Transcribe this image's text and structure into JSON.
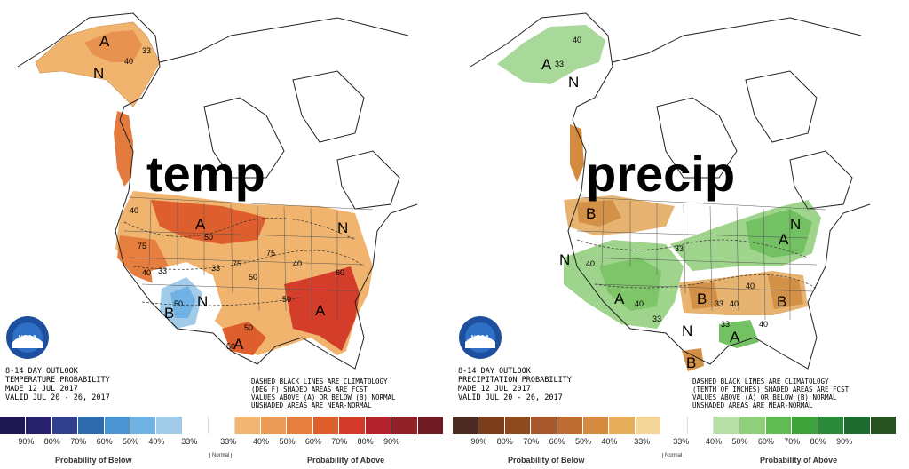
{
  "temp_panel": {
    "big_label": "temp",
    "logo_text": "NOAA",
    "outlook_lines": [
      "8-14 DAY OUTLOOK",
      "TEMPERATURE PROBABILITY",
      "MADE   12 JUL 2017",
      "VALID   JUL 20 - 26, 2017"
    ],
    "note_lines": [
      "DASHED BLACK LINES ARE CLIMATOLOGY",
      "(DEG F) SHADED AREAS ARE FCST",
      "VALUES ABOVE (A) OR BELOW (B) NORMAL",
      "UNSHADED AREAS ARE NEAR-NORMAL"
    ],
    "markers": [
      "A",
      "N",
      "A",
      "B",
      "N",
      "A",
      "A",
      "N"
    ],
    "contour_labels": [
      "40",
      "33",
      "50",
      "75",
      "75",
      "50",
      "40",
      "50",
      "60",
      "50",
      "33",
      "40",
      "75",
      "50",
      "33",
      "40",
      "50"
    ],
    "legend": {
      "colors": [
        "#1f1852",
        "#27216b",
        "#313f8e",
        "#2d6bad",
        "#4a94d2",
        "#6fb2e3",
        "#a2cbea",
        "#ffffff",
        "#ffffff",
        "#f1b772",
        "#eb9b55",
        "#e57e3e",
        "#de5f2d",
        "#d23b29",
        "#b5232c",
        "#902129",
        "#6e1b23"
      ],
      "ticks": [
        "90%",
        "80%",
        "70%",
        "60%",
        "50%",
        "40%",
        "33%",
        "33%",
        "40%",
        "50%",
        "60%",
        "70%",
        "80%",
        "90%"
      ],
      "below_caption": "Probability of Below",
      "normal_caption": "Normal",
      "above_caption": "Probability of Above"
    }
  },
  "precip_panel": {
    "big_label": "precip",
    "logo_text": "NOAA",
    "outlook_lines": [
      "8-14 DAY OUTLOOK",
      "PRECIPITATION PROBABILITY",
      "MADE   12 JUL 2017",
      "VALID   JUL 20 - 26, 2017"
    ],
    "note_lines": [
      "DASHED BLACK LINES ARE CLIMATOLOGY",
      "(TENTH OF INCHES) SHADED AREAS ARE FCST",
      "VALUES ABOVE (A) OR BELOW (B) NORMAL",
      "UNSHADED AREAS ARE NEAR-NORMAL"
    ],
    "markers": [
      "A",
      "N",
      "B",
      "N",
      "A",
      "A",
      "B",
      "B",
      "A",
      "B",
      "N",
      "N"
    ],
    "contour_labels": [
      "40",
      "33",
      "40",
      "33",
      "40",
      "33",
      "40",
      "33",
      "40",
      "33",
      "40"
    ],
    "legend": {
      "colors": [
        "#4b2b22",
        "#7a3e1c",
        "#8e4a1e",
        "#a7582c",
        "#bf6c32",
        "#d48b40",
        "#e6ad5a",
        "#f3d699",
        "#ffffff",
        "#ffffff",
        "#b5dfa6",
        "#8fcf7c",
        "#5fbb52",
        "#3ea23b",
        "#2a8a3a",
        "#1e6c30",
        "#275320"
      ],
      "ticks": [
        "90%",
        "80%",
        "70%",
        "60%",
        "50%",
        "40%",
        "33%",
        "33%",
        "40%",
        "50%",
        "60%",
        "70%",
        "80%",
        "90%"
      ],
      "below_caption": "Probability of Below",
      "normal_caption": "Normal",
      "above_caption": "Probability of Above"
    }
  }
}
